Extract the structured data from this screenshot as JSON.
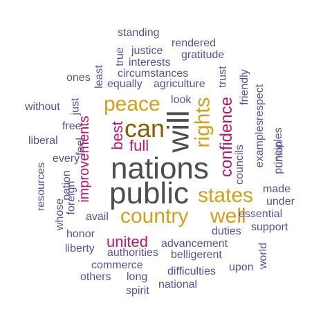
{
  "palette": {
    "dark": "#4d4d4d",
    "brown": "#8b5a00",
    "gold": "#d4a017",
    "pink": "#c0136b",
    "purple": "#5b4f9b"
  },
  "words": {
    "nations": "nations",
    "public": "public",
    "will": "will",
    "can": "can",
    "peace": "peace",
    "rights": "rights",
    "states": "states",
    "country": "country",
    "well": "well",
    "confidence": "confidence",
    "best": "best",
    "full": "full",
    "improvements": "improvements",
    "united": "united",
    "standing": "standing",
    "rendered": "rendered",
    "justice": "justice",
    "gratitude": "gratitude",
    "true": "true",
    "interests": "interests",
    "least": "least",
    "trust": "trust",
    "ones": "ones",
    "circumstances": "circumstances",
    "equally": "equally",
    "agriculture": "agriculture",
    "friendly": "friendly",
    "respect": "respect",
    "just": "just",
    "without": "without",
    "look": "look",
    "free": "free",
    "feel": "feel",
    "liberal": "liberal",
    "every": "every",
    "resources": "resources",
    "nation": "nation",
    "whose": "whose",
    "foreign": "foreign",
    "councils": "councils",
    "examples": "examples",
    "union": "union",
    "principles": "principles",
    "made": "made",
    "under": "under",
    "essential": "essential",
    "avail": "avail",
    "duties": "duties",
    "support": "support",
    "honor": "honor",
    "advancement": "advancement",
    "world": "world",
    "liberty": "liberty",
    "belligerent": "belligerent",
    "authorities": "authorities",
    "upon": "upon",
    "commerce": "commerce",
    "difficulties": "difficulties",
    "others": "others",
    "long": "long",
    "national": "national",
    "spirit": "spirit"
  }
}
